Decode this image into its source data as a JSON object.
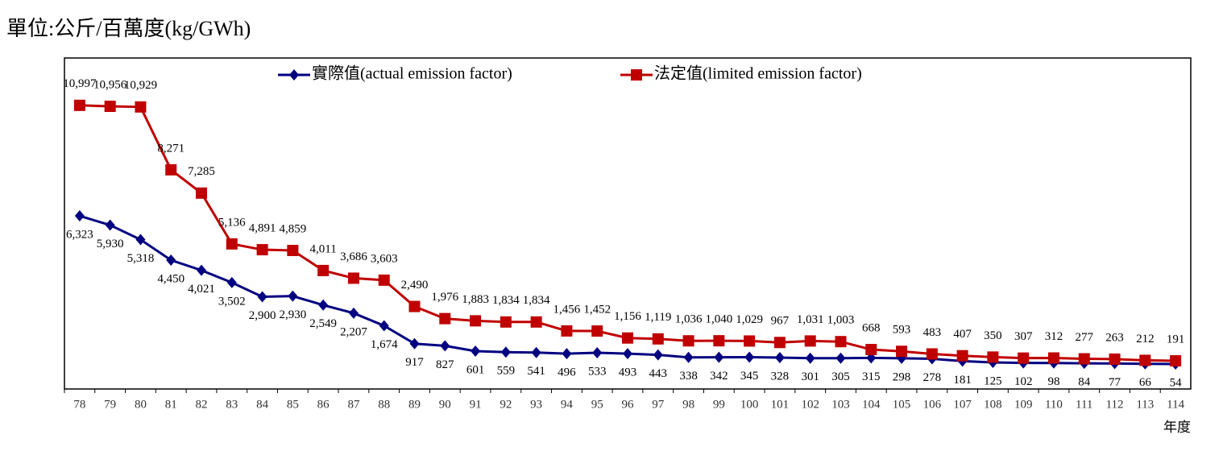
{
  "chart_data": {
    "type": "line",
    "title": "單位:公斤/百萬度(kg/GWh)",
    "x_label": "年度",
    "categories": [
      "78",
      "79",
      "80",
      "81",
      "82",
      "83",
      "84",
      "85",
      "86",
      "87",
      "88",
      "89",
      "90",
      "91",
      "92",
      "93",
      "94",
      "95",
      "96",
      "97",
      "98",
      "99",
      "100",
      "101",
      "102",
      "103",
      "104",
      "105",
      "106",
      "107",
      "108",
      "109",
      "110",
      "111",
      "112",
      "113",
      "114"
    ],
    "series": [
      {
        "name": "實際值(actual emission factor)",
        "color": "#000080",
        "marker": "diamond",
        "values": [
          6323,
          5930,
          5318,
          4450,
          4021,
          3502,
          2900,
          2930,
          2549,
          2207,
          1674,
          917,
          827,
          601,
          559,
          541,
          496,
          533,
          493,
          443,
          338,
          342,
          345,
          328,
          301,
          305,
          315,
          298,
          278,
          181,
          125,
          102,
          98,
          84,
          77,
          66,
          54
        ],
        "value_labels": [
          "6,323",
          "5,930",
          "5,318",
          "4,450",
          "4,021",
          "3,502",
          "2,900",
          "2,930",
          "2,549",
          "2,207",
          "1,674",
          "917",
          "827",
          "601",
          "559",
          "541",
          "496",
          "533",
          "493",
          "443",
          "338",
          "342",
          "345",
          "328",
          "301",
          "305",
          "315",
          "298",
          "278",
          "181",
          "125",
          "102",
          "98",
          "84",
          "77",
          "66",
          "54"
        ]
      },
      {
        "name": "法定值(limited emission factor)",
        "color": "#c00000",
        "marker": "square",
        "values": [
          10997,
          10956,
          10929,
          8271,
          7285,
          5136,
          4891,
          4859,
          4011,
          3686,
          3603,
          2490,
          1976,
          1883,
          1834,
          1834,
          1456,
          1452,
          1156,
          1119,
          1036,
          1040,
          1029,
          967,
          1031,
          1003,
          668,
          593,
          483,
          407,
          350,
          307,
          312,
          277,
          263,
          212,
          191
        ],
        "value_labels": [
          "10,997",
          "10,956",
          "10,929",
          "8,271",
          "7,285",
          "5,136",
          "4,891",
          "4,859",
          "4,011",
          "3,686",
          "3,603",
          "2,490",
          "1,976",
          "1,883",
          "1,834",
          "1,834",
          "1,456",
          "1,452",
          "1,156",
          "1,119",
          "1,036",
          "1,040",
          "1,029",
          "967",
          "1,031",
          "1,003",
          "668",
          "593",
          "483",
          "407",
          "350",
          "307",
          "312",
          "277",
          "263",
          "212",
          "191"
        ]
      }
    ],
    "ylim": [
      -1000,
      13000
    ],
    "legend": "top"
  }
}
